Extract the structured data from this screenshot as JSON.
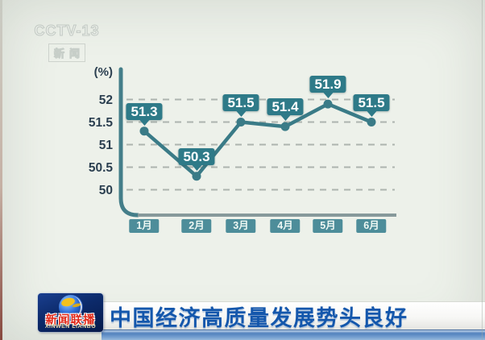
{
  "watermark": {
    "channel": "CCTV-13",
    "caption": "新闻"
  },
  "chart_data": {
    "type": "line",
    "unit_label": "(%)",
    "categories": [
      "1月",
      "2月",
      "3月",
      "4月",
      "5月",
      "6月"
    ],
    "values": [
      51.3,
      50.3,
      51.5,
      51.4,
      51.9,
      51.5
    ],
    "y_ticks": [
      52,
      51.5,
      51,
      50.5,
      50
    ],
    "ylim": [
      49.4,
      52.7
    ],
    "grid": "dashed",
    "legend": "none",
    "colors": {
      "line": "#3a7b87",
      "marker": "#3a7b87",
      "badge_bg": "#2e7a88",
      "month_badge_bg": "#4d8d9a",
      "grid": "#adb4af",
      "axis_vertical": "#447e89",
      "axis_horizontal": "#87999b",
      "tick_label": "#2b3f50"
    }
  },
  "banner": {
    "headline": "中国经济高质量发展势头良好",
    "logo_title": "新闻联播",
    "logo_subtitle": "XINWEN LIANBO"
  }
}
